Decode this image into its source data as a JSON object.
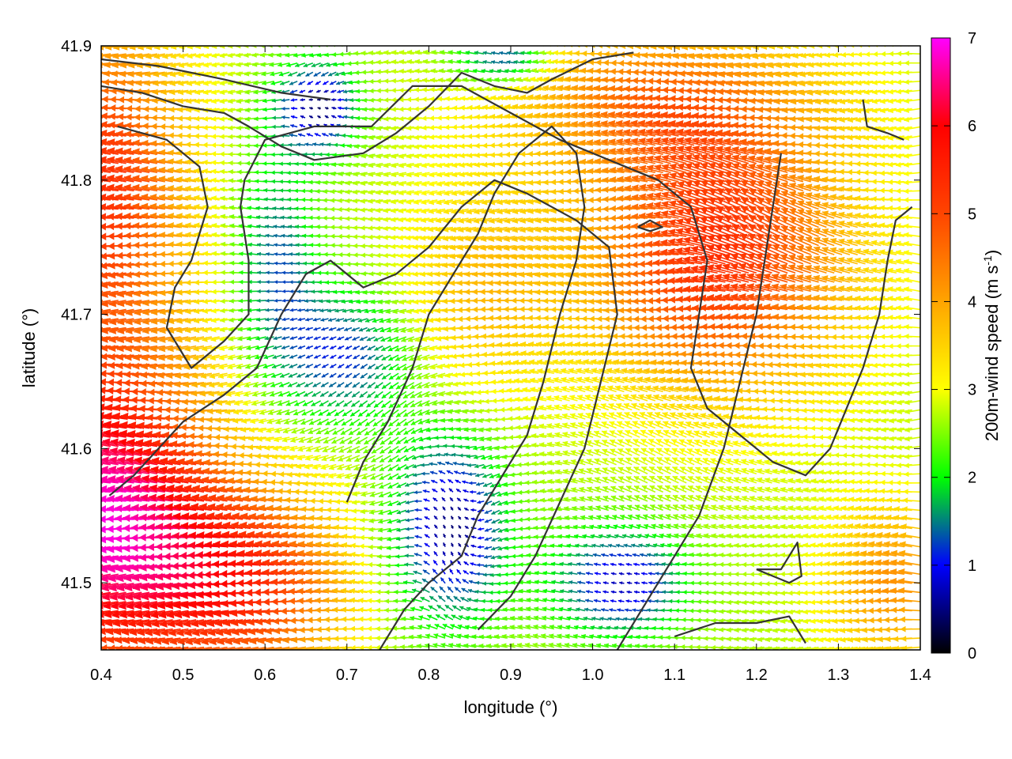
{
  "chart_data": {
    "type": "vector_field",
    "xlabel": "longitude (°)",
    "ylabel": "latitude (°)",
    "xlim": [
      0.4,
      1.4
    ],
    "ylim": [
      41.45,
      41.9
    ],
    "xticks": [
      "0.4",
      "0.5",
      "0.6",
      "0.7",
      "0.8",
      "0.9",
      "1.0",
      "1.1",
      "1.2",
      "1.3",
      "1.4"
    ],
    "yticks": [
      "41.5",
      "41.6",
      "41.7",
      "41.8",
      "41.9"
    ],
    "colorbar": {
      "label_main": "200m-wind speed (m s",
      "label_sup": "-1",
      "label_end": ")",
      "range": [
        0,
        7
      ],
      "ticks": [
        "0",
        "1",
        "2",
        "3",
        "4",
        "5",
        "6",
        "7"
      ],
      "palette": [
        "#000000",
        "#0000ff",
        "#00ff00",
        "#ffff00",
        "#ffa500",
        "#ff0000",
        "#ff00ff"
      ]
    },
    "grid": false,
    "contour_color": "#333333",
    "field_summary": {
      "dominant_direction": "westward (easterly flow)",
      "speed_max_region": "south-west, around lon 0.4–0.55, lat 41.45–41.62",
      "speed_min_regions": [
        "lon 0.63–0.7, lat 41.83–41.88",
        "lon 0.76–0.88, lat 41.47–41.6",
        "lon 0.98–1.08, lat 41.47–41.52"
      ]
    }
  }
}
